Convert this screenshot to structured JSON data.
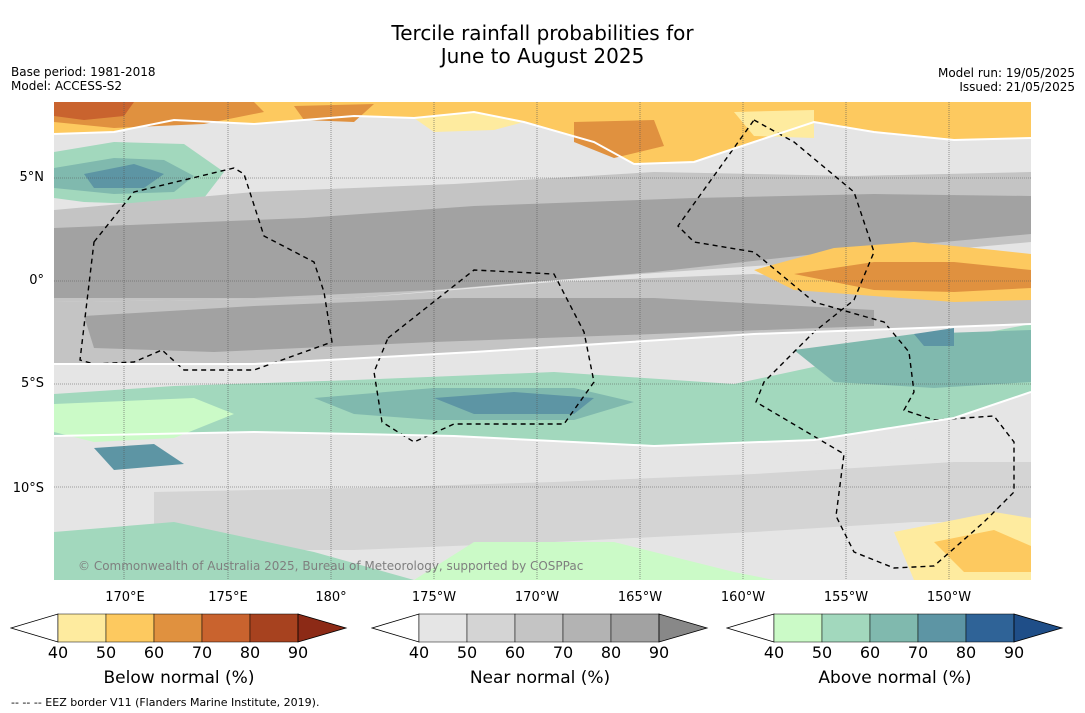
{
  "title_line1": "Tercile rainfall probabilities for",
  "title_line2": "June to August 2025",
  "meta_left": {
    "base_period": "Base period: 1981-2018",
    "model": "Model: ACCESS-S2"
  },
  "meta_right": {
    "model_run": "Model run: 19/05/2025",
    "issued": "Issued: 21/05/2025"
  },
  "latitude_labels": [
    "5°N",
    "0°",
    "5°S",
    "10°S"
  ],
  "longitude_labels": [
    "170°E",
    "175°E",
    "180°",
    "175°W",
    "170°W",
    "165°W",
    "160°W",
    "155°W",
    "150°W"
  ],
  "copyright": "© Commonwealth of Australia 2025, Bureau of Meteorology, supported by COSPPac",
  "colorbars": [
    {
      "title": "Below normal (%)",
      "ticks": [
        "40",
        "50",
        "60",
        "70",
        "80",
        "90"
      ],
      "colors": [
        "#ffffff",
        "#feeb9f",
        "#fdc95f",
        "#e0913f",
        "#c9632e",
        "#a7421f",
        "#8c2a16"
      ]
    },
    {
      "title": "Near normal (%)",
      "ticks": [
        "40",
        "50",
        "60",
        "70",
        "80",
        "90"
      ],
      "colors": [
        "#ffffff",
        "#e5e5e5",
        "#d4d4d4",
        "#c4c4c4",
        "#b3b3b3",
        "#a2a2a2",
        "#888888"
      ]
    },
    {
      "title": "Above normal (%)",
      "ticks": [
        "40",
        "50",
        "60",
        "70",
        "80",
        "90"
      ],
      "colors": [
        "#ffffff",
        "#cbfac7",
        "#a2d8bd",
        "#80b9ae",
        "#5d95a4",
        "#2f6397",
        "#1f4e88"
      ]
    }
  ],
  "footer": "--  --  -- EEZ border V11 (Flanders Marine Institute, 2019)."
}
